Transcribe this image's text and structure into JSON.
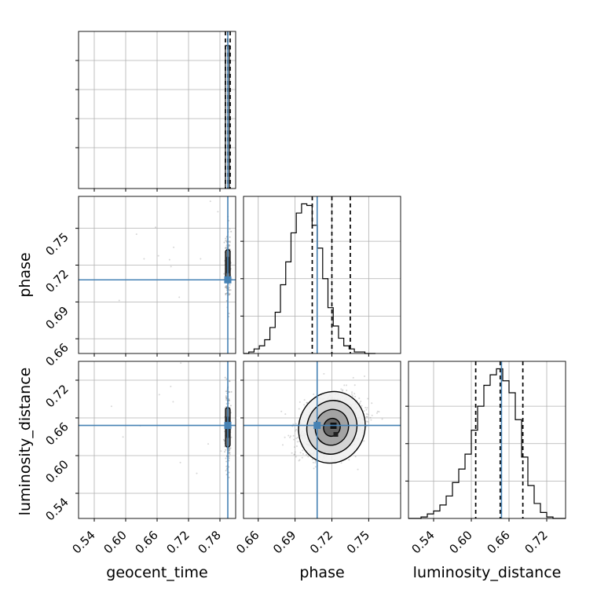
{
  "chart_data": {
    "type": "corner",
    "parameters": [
      "geocent_time",
      "phase",
      "luminosity_distance"
    ],
    "truth": {
      "geocent_time": 0.795,
      "phase": 0.708,
      "luminosity_distance": 0.648
    },
    "quantiles": {
      "geocent_time": [
        0.79,
        0.794,
        0.797
      ],
      "phase": [
        0.704,
        0.72,
        0.735
      ],
      "luminosity_distance": [
        0.607,
        0.646,
        0.682
      ]
    },
    "ranges": {
      "geocent_time": [
        0.51,
        0.81
      ],
      "phase": [
        0.648,
        0.776
      ],
      "luminosity_distance": [
        0.5,
        0.75
      ]
    },
    "ticks": {
      "geocent_time": [
        "0.54",
        "0.60",
        "0.66",
        "0.72",
        "0.78"
      ],
      "phase": [
        "0.66",
        "0.69",
        "0.72",
        "0.75"
      ],
      "luminosity_distance": [
        "0.54",
        "0.60",
        "0.66",
        "0.72"
      ]
    },
    "histograms": {
      "phase": {
        "bin_start": 0.648,
        "bin_width": 0.0043,
        "counts": [
          0,
          1,
          3,
          5,
          9,
          17,
          27,
          45,
          60,
          79,
          92,
          98,
          97,
          84,
          69,
          49,
          30,
          18,
          10,
          5,
          3,
          1,
          1,
          0,
          0
        ]
      },
      "luminosity_distance": {
        "bin_start": 0.5,
        "bin_width": 0.01,
        "counts": [
          0,
          0,
          1,
          3,
          5,
          9,
          15,
          24,
          33,
          43,
          59,
          75,
          89,
          96,
          100,
          92,
          84,
          66,
          41,
          22,
          10,
          4,
          1,
          0,
          0
        ]
      },
      "geocent_time": {
        "peak_location": 0.795
      }
    },
    "contours": {
      "phase_vs_luminosity_distance": {
        "center": [
          0.72,
          0.645
        ],
        "levels_sigma": [
          0.5,
          1.0,
          1.5,
          2.0
        ]
      }
    },
    "colors": {
      "truth": "#4682b4",
      "histogram": "#000000",
      "quantile_line": "#000000",
      "grid": "#b0b0b0",
      "scatter": "#8c8c8c"
    },
    "grid": true,
    "axis_labels": {
      "geocent_time": "geocent_time",
      "phase": "phase",
      "luminosity_distance": "luminosity_distance"
    }
  }
}
